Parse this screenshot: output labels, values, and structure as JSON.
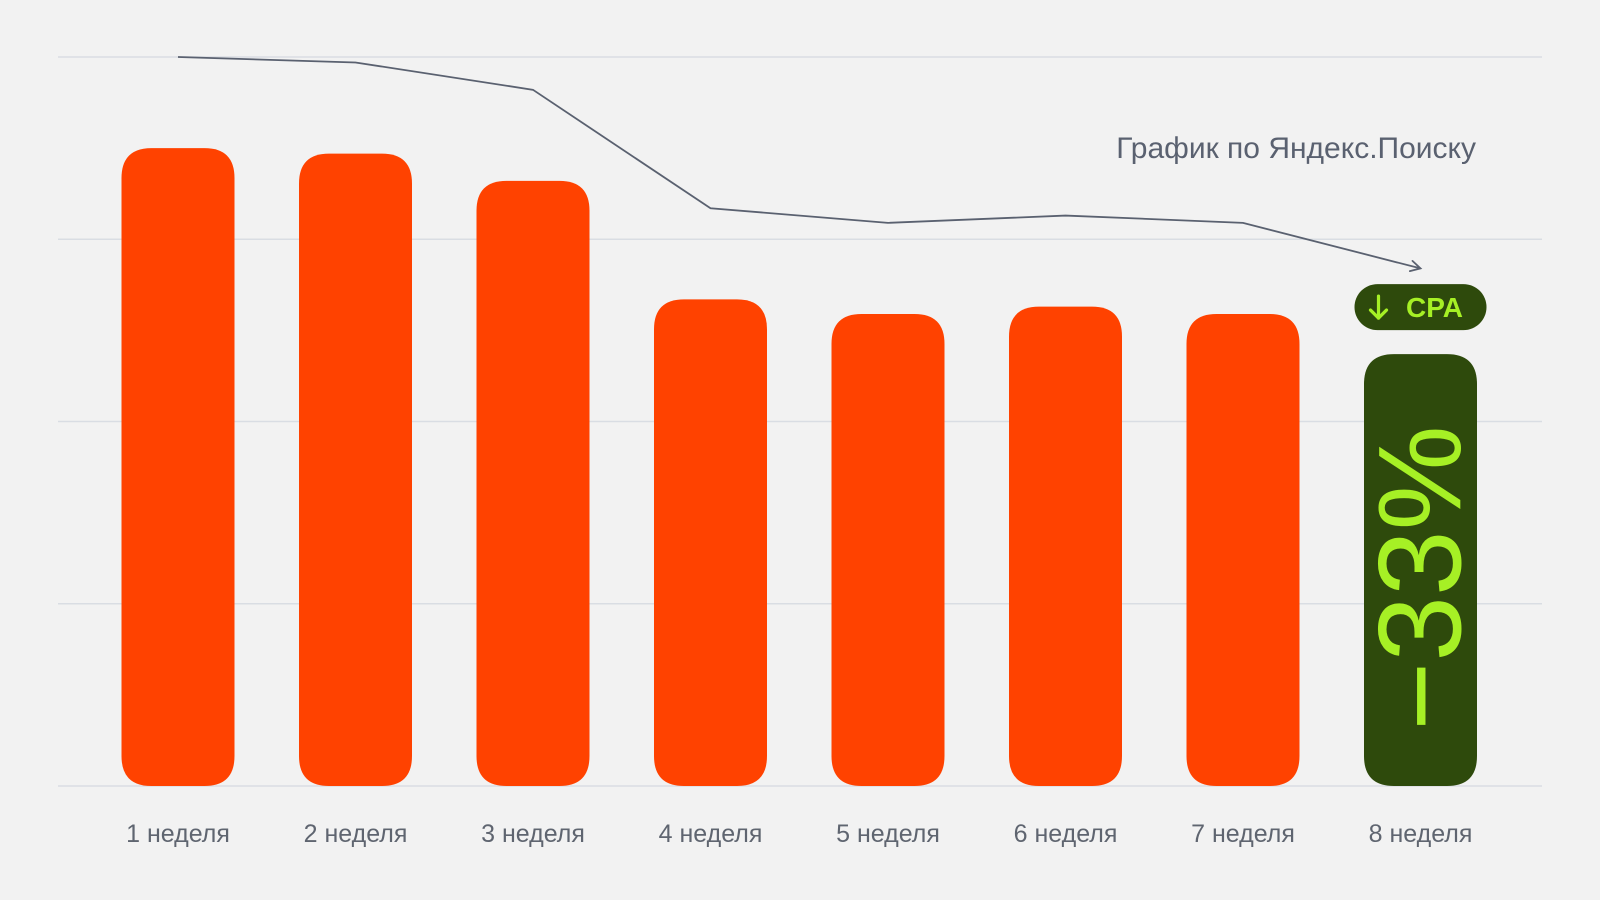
{
  "chart_data": {
    "type": "bar",
    "categories": [
      "1 неделя",
      "2 неделя",
      "3 неделя",
      "4 неделя",
      "5 неделя",
      "6 неделя",
      "7 неделя",
      "8 неделя"
    ],
    "values": [
      3.5,
      3.47,
      3.32,
      2.67,
      2.59,
      2.63,
      2.59,
      2.37
    ],
    "ylim": [
      0,
      4
    ],
    "grid": true,
    "line_series": {
      "name": "График по Яндекс.Поиску",
      "values": [
        4.0,
        3.97,
        3.82,
        3.17,
        3.09,
        3.13,
        3.09,
        2.84
      ]
    },
    "highlight": {
      "index": 7,
      "label": "−33%",
      "badge": "CPA",
      "badge_icon": "arrow-down-icon"
    },
    "colors": {
      "bar": "#ff4200",
      "highlight_bar": "#2e4a0c",
      "highlight_text": "#a6f025",
      "line": "#5a6170",
      "grid": "#d9dde3",
      "background": "#f2f2f2"
    }
  }
}
